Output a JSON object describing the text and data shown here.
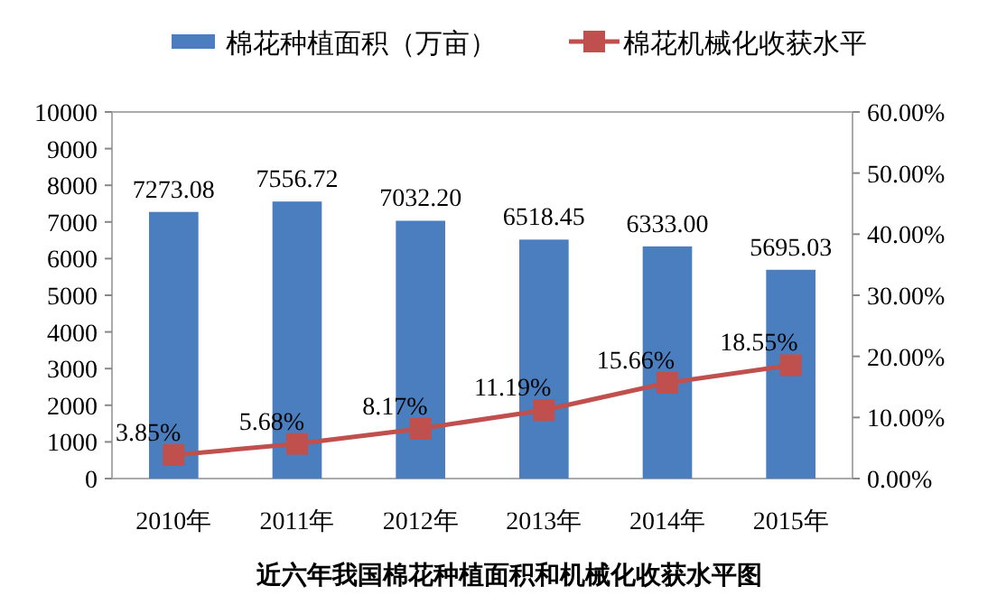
{
  "chart_data": {
    "type": "bar",
    "title": "近六年我国棉花种植面积和机械化收获水平图",
    "categories": [
      "2010年",
      "2011年",
      "2012年",
      "2013年",
      "2014年",
      "2015年"
    ],
    "series": [
      {
        "name": "棉花种植面积（万亩）",
        "color": "#4a7ebf",
        "values": [
          7273.08,
          7556.72,
          7032.2,
          6518.45,
          6333.0,
          5695.03
        ],
        "value_labels": [
          "7273.08",
          "7556.72",
          "7032.20",
          "6518.45",
          "6333.00",
          "5695.03"
        ]
      },
      {
        "name": "棉花机械化收获水平",
        "type": "line",
        "axis": "y2",
        "color": "#c0504d",
        "values": [
          3.85,
          5.68,
          8.17,
          11.19,
          15.66,
          18.55
        ],
        "value_labels": [
          "3.85%",
          "5.68%",
          "8.17%",
          "11.19%",
          "15.66%",
          "18.55%"
        ]
      }
    ],
    "marker": "square",
    "ylim": [
      0,
      10000
    ],
    "yticks": [
      0,
      1000,
      2000,
      3000,
      4000,
      5000,
      6000,
      7000,
      8000,
      9000,
      10000
    ],
    "y2lim": [
      0,
      60
    ],
    "y2ticks": [
      {
        "value": 0,
        "label": "0.00%"
      },
      {
        "value": 10,
        "label": "10.00%"
      },
      {
        "value": 20,
        "label": "20.00%"
      },
      {
        "value": 30,
        "label": "30.00%"
      },
      {
        "value": 40,
        "label": "40.00%"
      },
      {
        "value": 50,
        "label": "50.00%"
      },
      {
        "value": 60,
        "label": "60.00%"
      }
    ],
    "legend": "top"
  }
}
